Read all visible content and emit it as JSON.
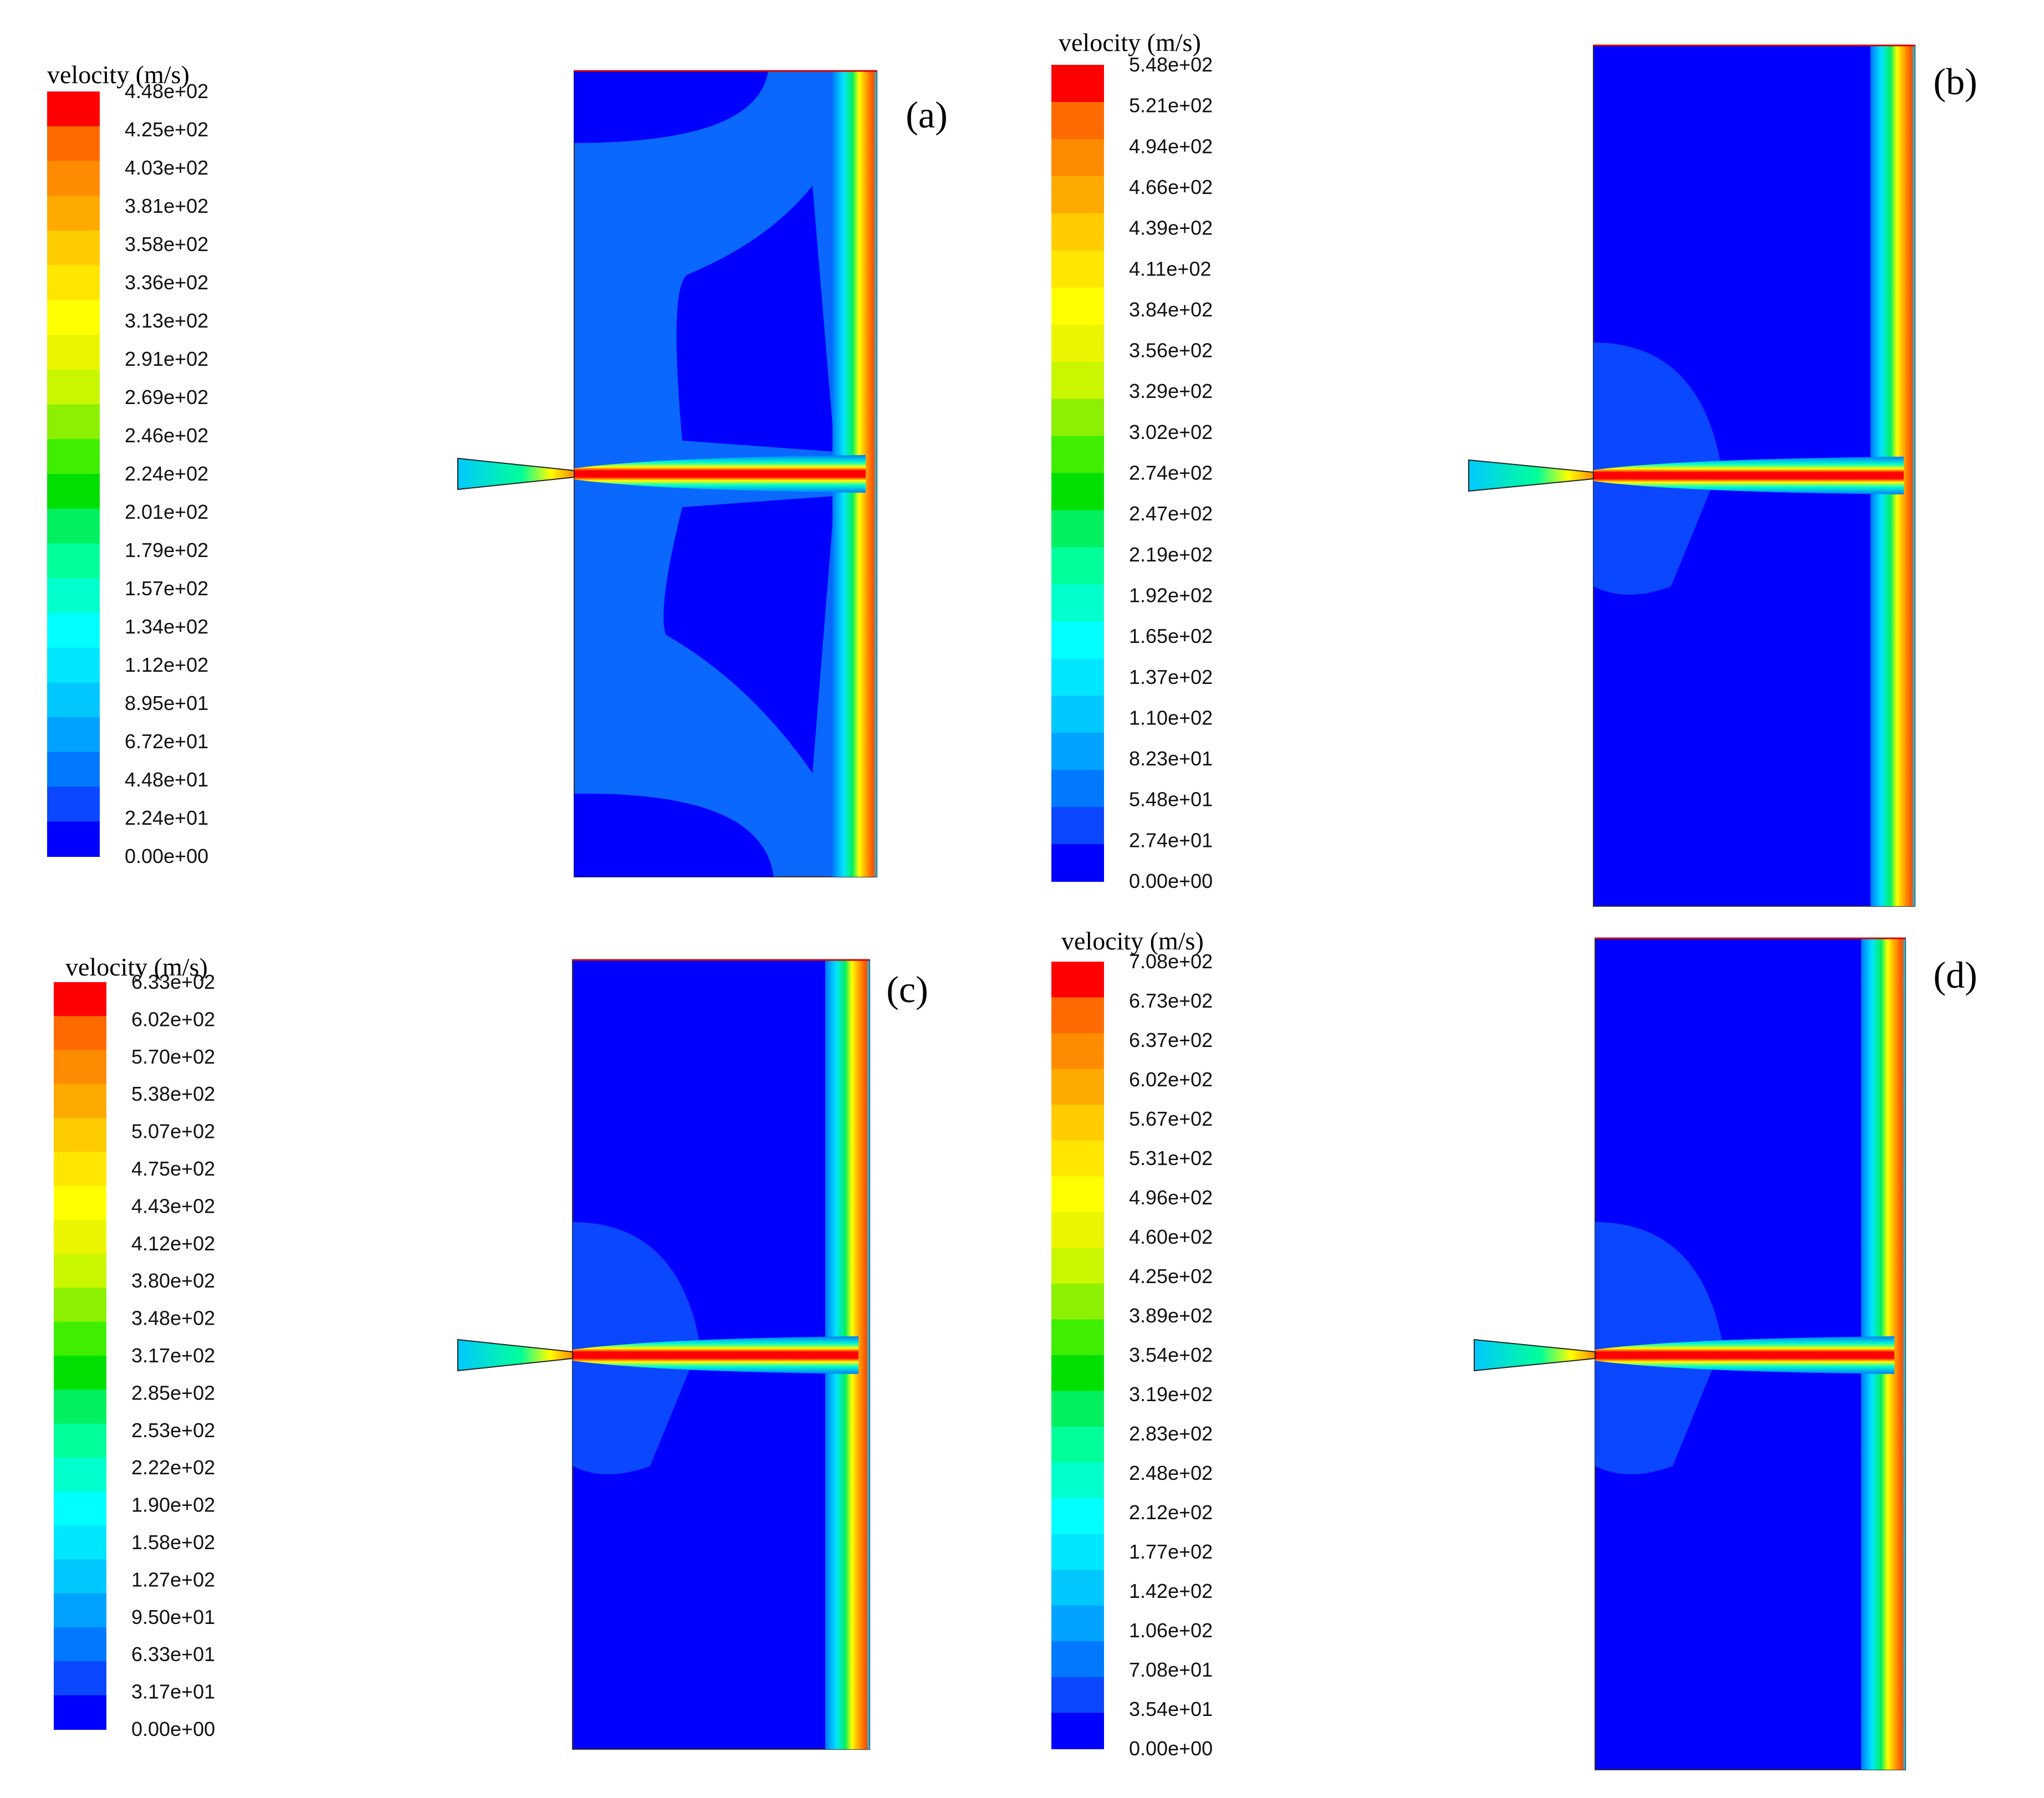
{
  "colormap": [
    "#0000ff",
    "#0a47ff",
    "#0078ff",
    "#00a2ff",
    "#00c8ff",
    "#00e6ff",
    "#00ffff",
    "#00ffcc",
    "#00ff99",
    "#00f060",
    "#00e000",
    "#40ee00",
    "#8cf000",
    "#c8f700",
    "#ecf500",
    "#ffff00",
    "#ffe600",
    "#ffcc00",
    "#ffaa00",
    "#ff8c00",
    "#ff6a00",
    "#ff0000"
  ],
  "panels": [
    {
      "label": "(a)",
      "legend_title": "velocity (m/s)",
      "ticks": [
        "4.48e+02",
        "4.25e+02",
        "4.03e+02",
        "3.81e+02",
        "3.58e+02",
        "3.36e+02",
        "3.13e+02",
        "2.91e+02",
        "2.69e+02",
        "2.46e+02",
        "2.24e+02",
        "2.01e+02",
        "1.79e+02",
        "1.57e+02",
        "1.34e+02",
        "1.12e+02",
        "8.95e+01",
        "6.72e+01",
        "4.48e+01",
        "2.24e+01",
        "0.00e+00"
      ]
    },
    {
      "label": "(b)",
      "legend_title": "velocity (m/s)",
      "ticks": [
        "5.48e+02",
        "5.21e+02",
        "4.94e+02",
        "4.66e+02",
        "4.39e+02",
        "4.11e+02",
        "3.84e+02",
        "3.56e+02",
        "3.29e+02",
        "3.02e+02",
        "2.74e+02",
        "2.47e+02",
        "2.19e+02",
        "1.92e+02",
        "1.65e+02",
        "1.37e+02",
        "1.10e+02",
        "8.23e+01",
        "5.48e+01",
        "2.74e+01",
        "0.00e+00"
      ]
    },
    {
      "label": "(c)",
      "legend_title": "velocity (m/s)",
      "ticks": [
        "6.33e+02",
        "6.02e+02",
        "5.70e+02",
        "5.38e+02",
        "5.07e+02",
        "4.75e+02",
        "4.43e+02",
        "4.12e+02",
        "3.80e+02",
        "3.48e+02",
        "3.17e+02",
        "2.85e+02",
        "2.53e+02",
        "2.22e+02",
        "1.90e+02",
        "1.58e+02",
        "1.27e+02",
        "9.50e+01",
        "6.33e+01",
        "3.17e+01",
        "0.00e+00"
      ]
    },
    {
      "label": "(d)",
      "legend_title": "velocity (m/s)",
      "ticks": [
        "7.08e+02",
        "6.73e+02",
        "6.37e+02",
        "6.02e+02",
        "5.67e+02",
        "5.31e+02",
        "4.96e+02",
        "4.60e+02",
        "4.25e+02",
        "3.89e+02",
        "3.54e+02",
        "3.19e+02",
        "2.83e+02",
        "2.48e+02",
        "2.12e+02",
        "1.77e+02",
        "1.42e+02",
        "1.06e+02",
        "7.08e+01",
        "3.54e+01",
        "0.00e+00"
      ]
    }
  ]
}
